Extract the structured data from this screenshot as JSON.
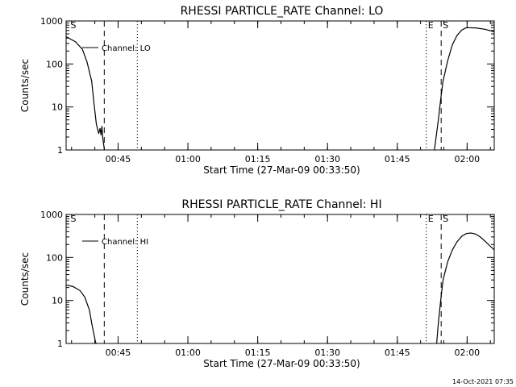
{
  "footer": {
    "timestamp": "14-Oct-2021 07:35"
  },
  "chart_data": [
    {
      "type": "line",
      "title": "RHESSI PARTICLE_RATE Channel: LO",
      "xlabel": "Start Time (27-Mar-09 00:33:50)",
      "ylabel": "Counts/sec",
      "yscale": "log",
      "ylim": [
        1,
        1000
      ],
      "xlim_min": [
        0,
        92
      ],
      "yticks": [
        "1",
        "10",
        "100",
        "1000"
      ],
      "xticks": [
        {
          "t": 11.17,
          "label": "00:45"
        },
        {
          "t": 26.17,
          "label": "01:00"
        },
        {
          "t": 41.17,
          "label": "01:15"
        },
        {
          "t": 56.17,
          "label": "01:30"
        },
        {
          "t": 71.17,
          "label": "01:45"
        },
        {
          "t": 86.17,
          "label": "02:00"
        }
      ],
      "markers": [
        {
          "t": 0.6,
          "label": "S",
          "style": "none"
        },
        {
          "t": 8.2,
          "label": "",
          "style": "dashed"
        },
        {
          "t": 15.3,
          "label": "",
          "style": "dotted"
        },
        {
          "t": 77.4,
          "label": "E",
          "style": "dotted"
        },
        {
          "t": 80.6,
          "label": "S",
          "style": "dashed"
        },
        {
          "t": 92.0,
          "label": "",
          "style": "dashdot"
        }
      ],
      "legend": "Channel: LO",
      "series": [
        {
          "x": [
            0,
            2,
            3.5,
            4.5,
            5.5,
            6,
            6.5,
            7,
            7.3,
            7.5,
            7.7,
            7.9,
            8.3
          ],
          "y": [
            430,
            330,
            220,
            110,
            40,
            12,
            4,
            2.4,
            3.2,
            2.2,
            3.6,
            1.8,
            0.9
          ]
        },
        {
          "x": [
            79.1,
            79.5,
            80,
            80.5,
            81,
            82,
            83,
            84,
            85,
            86,
            88,
            90,
            92
          ],
          "y": [
            0.9,
            2,
            5,
            15,
            40,
            120,
            280,
            460,
            610,
            700,
            690,
            640,
            560
          ]
        }
      ]
    },
    {
      "type": "line",
      "title": "RHESSI PARTICLE_RATE Channel: HI",
      "xlabel": "Start Time (27-Mar-09 00:33:50)",
      "ylabel": "Counts/sec",
      "yscale": "log",
      "ylim": [
        1,
        1000
      ],
      "xlim_min": [
        0,
        92
      ],
      "yticks": [
        "1",
        "10",
        "100",
        "1000"
      ],
      "xticks": [
        {
          "t": 11.17,
          "label": "00:45"
        },
        {
          "t": 26.17,
          "label": "01:00"
        },
        {
          "t": 41.17,
          "label": "01:15"
        },
        {
          "t": 56.17,
          "label": "01:30"
        },
        {
          "t": 71.17,
          "label": "01:45"
        },
        {
          "t": 86.17,
          "label": "02:00"
        }
      ],
      "markers": [
        {
          "t": 0.6,
          "label": "S",
          "style": "none"
        },
        {
          "t": 8.2,
          "label": "",
          "style": "dashed"
        },
        {
          "t": 15.3,
          "label": "",
          "style": "dotted"
        },
        {
          "t": 77.4,
          "label": "E",
          "style": "dotted"
        },
        {
          "t": 80.6,
          "label": "S",
          "style": "dashed"
        },
        {
          "t": 92.0,
          "label": "",
          "style": "dashdot"
        }
      ],
      "legend": "Channel: HI",
      "series": [
        {
          "x": [
            0,
            1.5,
            3,
            4,
            5,
            5.5,
            6,
            6.3,
            6.6
          ],
          "y": [
            23,
            21,
            17,
            12,
            6,
            3,
            1.6,
            1.1,
            0.9
          ]
        },
        {
          "x": [
            79.6,
            80,
            80.5,
            81,
            82,
            83,
            84,
            85,
            86,
            87,
            88,
            89,
            90,
            91,
            92
          ],
          "y": [
            0.9,
            3,
            10,
            30,
            80,
            150,
            230,
            310,
            360,
            370,
            350,
            300,
            240,
            190,
            150
          ]
        }
      ]
    }
  ]
}
